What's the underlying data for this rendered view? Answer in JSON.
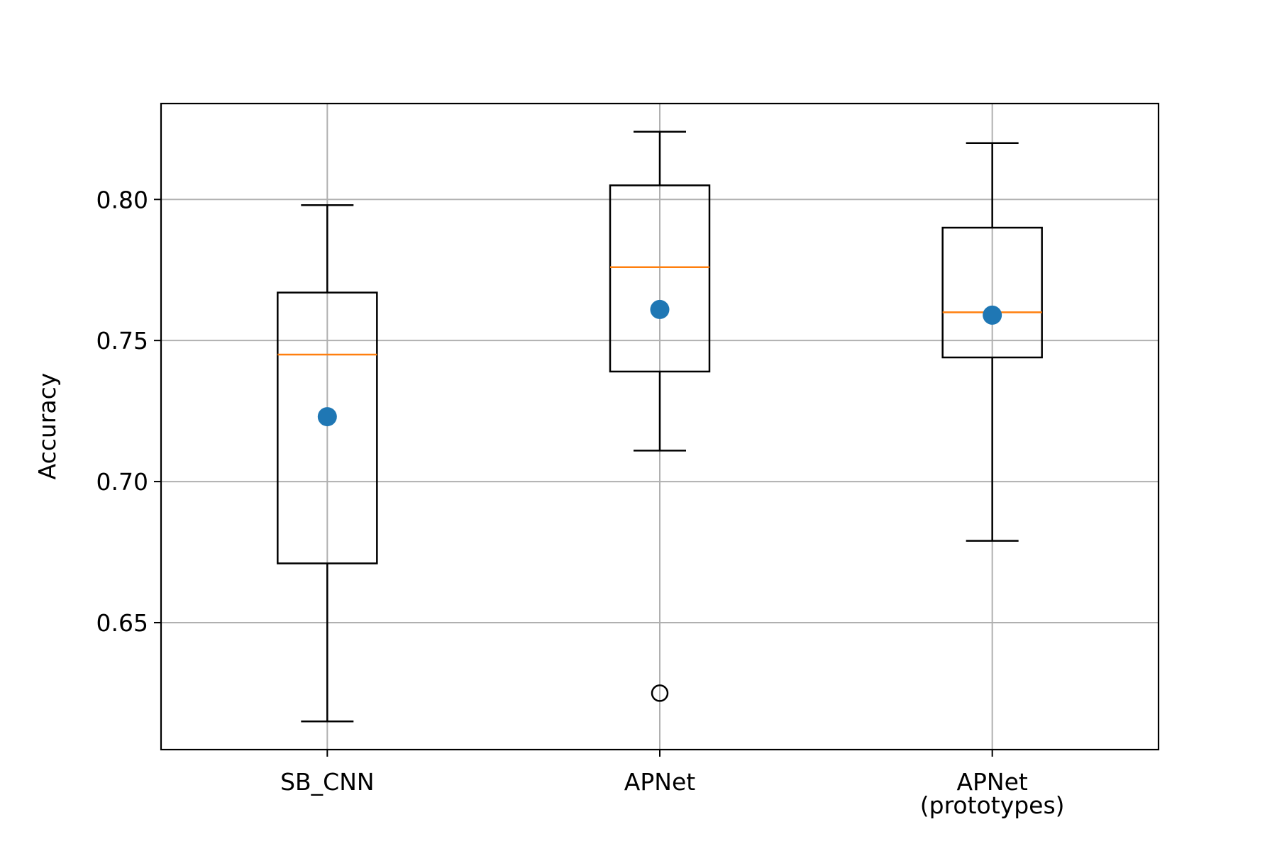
{
  "chart_data": {
    "type": "box",
    "title": "",
    "xlabel": "",
    "ylabel": "Accuracy",
    "ylim": [
      0.605,
      0.834
    ],
    "yticks": [
      "0.65",
      "0.70",
      "0.75",
      "0.80"
    ],
    "grid": true,
    "categories": [
      {
        "label": [
          "SB_CNN"
        ],
        "whisker_low": 0.615,
        "q1": 0.671,
        "median": 0.745,
        "q3": 0.767,
        "whisker_high": 0.798,
        "mean": 0.723,
        "outliers": []
      },
      {
        "label": [
          "APNet"
        ],
        "whisker_low": 0.711,
        "q1": 0.739,
        "median": 0.776,
        "q3": 0.805,
        "whisker_high": 0.824,
        "mean": 0.761,
        "outliers": [
          0.625
        ]
      },
      {
        "label": [
          "APNet",
          "(prototypes)"
        ],
        "whisker_low": 0.679,
        "q1": 0.744,
        "median": 0.76,
        "q3": 0.79,
        "whisker_high": 0.82,
        "mean": 0.759,
        "outliers": []
      }
    ],
    "colors": {
      "box": "#000000",
      "median": "#ff7f0e",
      "mean": "#1f77b4",
      "grid": "#b0b0b0"
    }
  }
}
